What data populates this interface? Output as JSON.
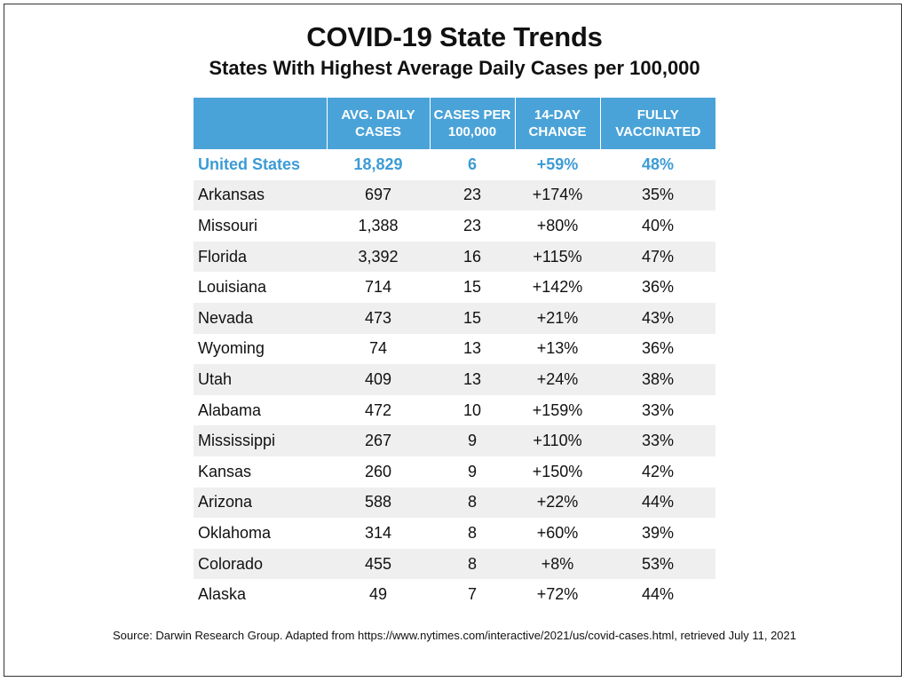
{
  "chart_data": {
    "type": "table",
    "title": "COVID-19 State Trends",
    "subtitle": "States With Highest Average Daily Cases per 100,000",
    "columns": [
      "",
      "AVG. DAILY\nCASES",
      "CASES PER\n100,000",
      "14-DAY\nCHANGE",
      "FULLY\nVACCINATED"
    ],
    "rows": [
      [
        "United States",
        "18,829",
        "6",
        "+59%",
        "48%"
      ],
      [
        "Arkansas",
        "697",
        "23",
        "+174%",
        "35%"
      ],
      [
        "Missouri",
        "1,388",
        "23",
        "+80%",
        "40%"
      ],
      [
        "Florida",
        "3,392",
        "16",
        "+115%",
        "47%"
      ],
      [
        "Louisiana",
        "714",
        "15",
        "+142%",
        "36%"
      ],
      [
        "Nevada",
        "473",
        "15",
        "+21%",
        "43%"
      ],
      [
        "Wyoming",
        "74",
        "13",
        "+13%",
        "36%"
      ],
      [
        "Utah",
        "409",
        "13",
        "+24%",
        "38%"
      ],
      [
        "Alabama",
        "472",
        "10",
        "+159%",
        "33%"
      ],
      [
        "Mississippi",
        "267",
        "9",
        "+110%",
        "33%"
      ],
      [
        "Kansas",
        "260",
        "9",
        "+150%",
        "42%"
      ],
      [
        "Arizona",
        "588",
        "8",
        "+22%",
        "44%"
      ],
      [
        "Oklahoma",
        "314",
        "8",
        "+60%",
        "39%"
      ],
      [
        "Colorado",
        "455",
        "8",
        "+8%",
        "53%"
      ],
      [
        "Alaska",
        "49",
        "7",
        "+72%",
        "44%"
      ]
    ],
    "source": "Source: Darwin Research Group. Adapted from https://www.nytimes.com/interactive/2021/us/covid-cases.html, retrieved July 11, 2021"
  },
  "colors": {
    "header_bg": "#4aa3d8",
    "highlight_text": "#3c9bd6",
    "alt_row_bg": "#efefef"
  }
}
